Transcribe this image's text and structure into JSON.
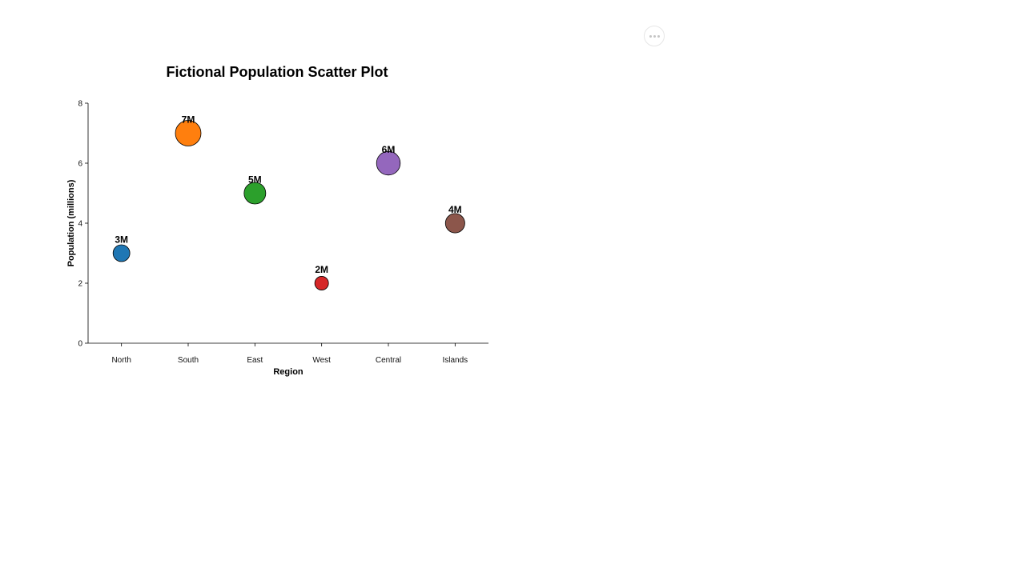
{
  "ui": {
    "more_button_icon": "more-horizontal-icon"
  },
  "chart_data": {
    "type": "scatter",
    "title": "Fictional Population Scatter Plot",
    "xlabel": "Region",
    "ylabel": "Population (millions)",
    "categories": [
      "North",
      "South",
      "East",
      "West",
      "Central",
      "Islands"
    ],
    "values": [
      3,
      7,
      5,
      2,
      6,
      4
    ],
    "data_labels": [
      "3M",
      "7M",
      "5M",
      "2M",
      "6M",
      "4M"
    ],
    "colors": [
      "#1f77b4",
      "#ff7f0e",
      "#2ca02c",
      "#d62728",
      "#9467bd",
      "#8c564b"
    ],
    "marker_size_encodes": "value",
    "ylim": [
      0,
      8
    ],
    "yticks": [
      0,
      2,
      4,
      6,
      8
    ],
    "ytick_labels": [
      "0",
      "2",
      "4",
      "6",
      "8"
    ],
    "grid": false,
    "legend": "none"
  }
}
